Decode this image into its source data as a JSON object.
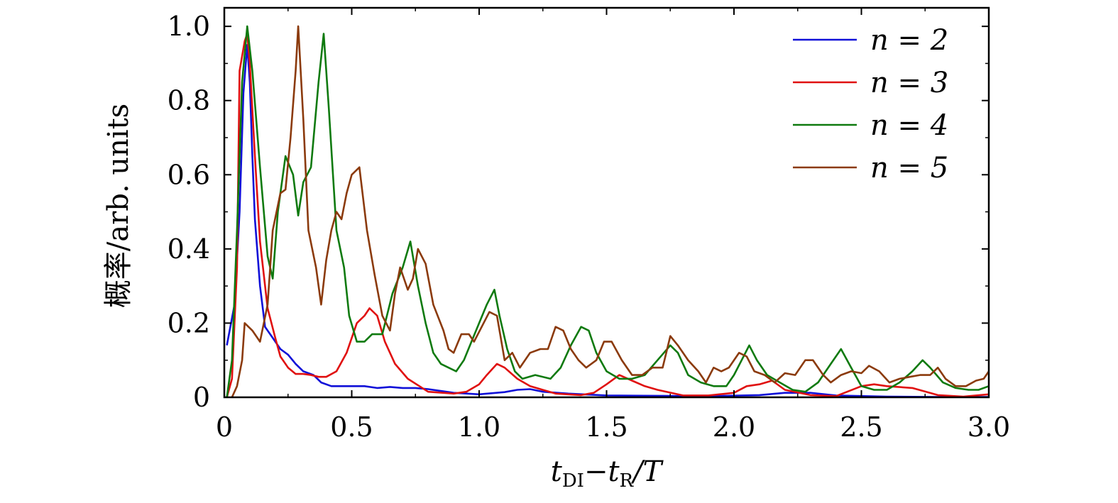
{
  "chart_data": {
    "type": "line",
    "xlabel": "t_DI − t_R / T",
    "xlabel_parts": {
      "t1": "t",
      "sub1": "DI",
      "minus": "−",
      "t2": "t",
      "sub2": "R",
      "rest": "/T"
    },
    "ylabel": "概率/arb. units",
    "xlim": [
      0,
      3.0
    ],
    "ylim": [
      0,
      1.05
    ],
    "x_ticks": [
      0,
      0.5,
      1.0,
      1.5,
      2.0,
      2.5,
      3.0
    ],
    "x_tick_labels": [
      "0",
      "0.5",
      "1.0",
      "1.5",
      "2.0",
      "2.5",
      "3.0"
    ],
    "y_ticks": [
      0,
      0.2,
      0.4,
      0.6,
      0.8,
      1.0
    ],
    "y_tick_labels": [
      "0",
      "0.2",
      "0.4",
      "0.6",
      "0.8",
      "1.0"
    ],
    "grid": false,
    "legend_position": "top-right",
    "series": [
      {
        "name": "n = 2",
        "color": "#1010d8",
        "points": [
          [
            0.01,
            0.14
          ],
          [
            0.04,
            0.25
          ],
          [
            0.06,
            0.5
          ],
          [
            0.075,
            0.82
          ],
          [
            0.09,
            0.95
          ],
          [
            0.1,
            0.85
          ],
          [
            0.11,
            0.65
          ],
          [
            0.12,
            0.48
          ],
          [
            0.14,
            0.3
          ],
          [
            0.16,
            0.19
          ],
          [
            0.19,
            0.16
          ],
          [
            0.22,
            0.13
          ],
          [
            0.25,
            0.115
          ],
          [
            0.28,
            0.09
          ],
          [
            0.31,
            0.07
          ],
          [
            0.35,
            0.06
          ],
          [
            0.38,
            0.04
          ],
          [
            0.42,
            0.03
          ],
          [
            0.46,
            0.03
          ],
          [
            0.5,
            0.03
          ],
          [
            0.55,
            0.03
          ],
          [
            0.6,
            0.025
          ],
          [
            0.65,
            0.028
          ],
          [
            0.7,
            0.025
          ],
          [
            0.75,
            0.025
          ],
          [
            0.8,
            0.022
          ],
          [
            0.9,
            0.012
          ],
          [
            1.0,
            0.008
          ],
          [
            1.1,
            0.014
          ],
          [
            1.15,
            0.02
          ],
          [
            1.2,
            0.022
          ],
          [
            1.25,
            0.015
          ],
          [
            1.35,
            0.01
          ],
          [
            1.5,
            0.005
          ],
          [
            1.7,
            0.004
          ],
          [
            1.9,
            0.003
          ],
          [
            2.1,
            0.006
          ],
          [
            2.2,
            0.012
          ],
          [
            2.3,
            0.012
          ],
          [
            2.4,
            0.005
          ],
          [
            2.6,
            0.002
          ],
          [
            2.8,
            0.001
          ],
          [
            3.0,
            0.001
          ]
        ]
      },
      {
        "name": "n = 3",
        "color": "#e01010",
        "points": [
          [
            0.01,
            0.0
          ],
          [
            0.03,
            0.05
          ],
          [
            0.05,
            0.35
          ],
          [
            0.06,
            0.88
          ],
          [
            0.08,
            0.96
          ],
          [
            0.09,
            0.98
          ],
          [
            0.1,
            0.9
          ],
          [
            0.12,
            0.65
          ],
          [
            0.14,
            0.42
          ],
          [
            0.17,
            0.24
          ],
          [
            0.2,
            0.16
          ],
          [
            0.22,
            0.11
          ],
          [
            0.25,
            0.08
          ],
          [
            0.28,
            0.063
          ],
          [
            0.31,
            0.063
          ],
          [
            0.34,
            0.06
          ],
          [
            0.37,
            0.055
          ],
          [
            0.4,
            0.055
          ],
          [
            0.44,
            0.07
          ],
          [
            0.48,
            0.12
          ],
          [
            0.52,
            0.2
          ],
          [
            0.55,
            0.22
          ],
          [
            0.57,
            0.24
          ],
          [
            0.6,
            0.22
          ],
          [
            0.63,
            0.15
          ],
          [
            0.67,
            0.09
          ],
          [
            0.72,
            0.05
          ],
          [
            0.8,
            0.015
          ],
          [
            0.9,
            0.01
          ],
          [
            0.95,
            0.015
          ],
          [
            1.0,
            0.035
          ],
          [
            1.03,
            0.06
          ],
          [
            1.07,
            0.09
          ],
          [
            1.1,
            0.08
          ],
          [
            1.15,
            0.05
          ],
          [
            1.2,
            0.03
          ],
          [
            1.3,
            0.01
          ],
          [
            1.4,
            0.006
          ],
          [
            1.45,
            0.012
          ],
          [
            1.5,
            0.035
          ],
          [
            1.55,
            0.06
          ],
          [
            1.6,
            0.045
          ],
          [
            1.65,
            0.03
          ],
          [
            1.7,
            0.02
          ],
          [
            1.8,
            0.005
          ],
          [
            1.9,
            0.005
          ],
          [
            2.0,
            0.012
          ],
          [
            2.05,
            0.03
          ],
          [
            2.1,
            0.035
          ],
          [
            2.15,
            0.045
          ],
          [
            2.2,
            0.02
          ],
          [
            2.3,
            0.006
          ],
          [
            2.4,
            0.003
          ],
          [
            2.5,
            0.03
          ],
          [
            2.55,
            0.035
          ],
          [
            2.6,
            0.03
          ],
          [
            2.7,
            0.025
          ],
          [
            2.8,
            0.006
          ],
          [
            2.9,
            0.002
          ],
          [
            3.0,
            0.008
          ]
        ]
      },
      {
        "name": "n = 4",
        "color": "#0f7a0f",
        "points": [
          [
            0.01,
            0.0
          ],
          [
            0.03,
            0.1
          ],
          [
            0.05,
            0.45
          ],
          [
            0.07,
            0.85
          ],
          [
            0.09,
            1.0
          ],
          [
            0.11,
            0.88
          ],
          [
            0.14,
            0.62
          ],
          [
            0.17,
            0.38
          ],
          [
            0.19,
            0.32
          ],
          [
            0.21,
            0.5
          ],
          [
            0.24,
            0.65
          ],
          [
            0.27,
            0.6
          ],
          [
            0.29,
            0.49
          ],
          [
            0.31,
            0.58
          ],
          [
            0.34,
            0.62
          ],
          [
            0.37,
            0.85
          ],
          [
            0.39,
            0.98
          ],
          [
            0.41,
            0.78
          ],
          [
            0.44,
            0.45
          ],
          [
            0.47,
            0.35
          ],
          [
            0.49,
            0.22
          ],
          [
            0.52,
            0.15
          ],
          [
            0.55,
            0.15
          ],
          [
            0.58,
            0.17
          ],
          [
            0.62,
            0.17
          ],
          [
            0.66,
            0.28
          ],
          [
            0.7,
            0.35
          ],
          [
            0.73,
            0.42
          ],
          [
            0.76,
            0.3
          ],
          [
            0.79,
            0.2
          ],
          [
            0.82,
            0.12
          ],
          [
            0.85,
            0.09
          ],
          [
            0.88,
            0.08
          ],
          [
            0.91,
            0.07
          ],
          [
            0.94,
            0.1
          ],
          [
            0.97,
            0.15
          ],
          [
            1.0,
            0.2
          ],
          [
            1.03,
            0.25
          ],
          [
            1.06,
            0.29
          ],
          [
            1.08,
            0.22
          ],
          [
            1.11,
            0.13
          ],
          [
            1.14,
            0.07
          ],
          [
            1.17,
            0.05
          ],
          [
            1.22,
            0.06
          ],
          [
            1.28,
            0.05
          ],
          [
            1.32,
            0.08
          ],
          [
            1.36,
            0.14
          ],
          [
            1.4,
            0.19
          ],
          [
            1.43,
            0.18
          ],
          [
            1.46,
            0.12
          ],
          [
            1.5,
            0.07
          ],
          [
            1.55,
            0.05
          ],
          [
            1.6,
            0.05
          ],
          [
            1.65,
            0.06
          ],
          [
            1.7,
            0.1
          ],
          [
            1.75,
            0.14
          ],
          [
            1.78,
            0.12
          ],
          [
            1.82,
            0.06
          ],
          [
            1.87,
            0.04
          ],
          [
            1.92,
            0.03
          ],
          [
            1.97,
            0.03
          ],
          [
            2.0,
            0.06
          ],
          [
            2.03,
            0.1
          ],
          [
            2.06,
            0.14
          ],
          [
            2.09,
            0.1
          ],
          [
            2.13,
            0.06
          ],
          [
            2.18,
            0.04
          ],
          [
            2.23,
            0.02
          ],
          [
            2.28,
            0.015
          ],
          [
            2.33,
            0.04
          ],
          [
            2.38,
            0.09
          ],
          [
            2.42,
            0.13
          ],
          [
            2.46,
            0.08
          ],
          [
            2.5,
            0.03
          ],
          [
            2.55,
            0.02
          ],
          [
            2.6,
            0.02
          ],
          [
            2.65,
            0.04
          ],
          [
            2.7,
            0.07
          ],
          [
            2.74,
            0.1
          ],
          [
            2.77,
            0.08
          ],
          [
            2.82,
            0.04
          ],
          [
            2.87,
            0.025
          ],
          [
            2.92,
            0.02
          ],
          [
            2.96,
            0.02
          ],
          [
            3.0,
            0.03
          ]
        ]
      },
      {
        "name": "n = 5",
        "color": "#8b3a0c",
        "points": [
          [
            0.03,
            0.0
          ],
          [
            0.05,
            0.03
          ],
          [
            0.07,
            0.1
          ],
          [
            0.08,
            0.2
          ],
          [
            0.11,
            0.18
          ],
          [
            0.14,
            0.15
          ],
          [
            0.17,
            0.25
          ],
          [
            0.19,
            0.45
          ],
          [
            0.22,
            0.55
          ],
          [
            0.24,
            0.56
          ],
          [
            0.26,
            0.7
          ],
          [
            0.28,
            0.88
          ],
          [
            0.29,
            1.0
          ],
          [
            0.31,
            0.75
          ],
          [
            0.33,
            0.45
          ],
          [
            0.36,
            0.35
          ],
          [
            0.38,
            0.25
          ],
          [
            0.4,
            0.37
          ],
          [
            0.42,
            0.45
          ],
          [
            0.44,
            0.5
          ],
          [
            0.46,
            0.48
          ],
          [
            0.48,
            0.55
          ],
          [
            0.5,
            0.6
          ],
          [
            0.53,
            0.62
          ],
          [
            0.56,
            0.45
          ],
          [
            0.59,
            0.33
          ],
          [
            0.62,
            0.22
          ],
          [
            0.65,
            0.18
          ],
          [
            0.67,
            0.28
          ],
          [
            0.69,
            0.35
          ],
          [
            0.72,
            0.29
          ],
          [
            0.74,
            0.32
          ],
          [
            0.76,
            0.4
          ],
          [
            0.79,
            0.36
          ],
          [
            0.82,
            0.25
          ],
          [
            0.86,
            0.18
          ],
          [
            0.88,
            0.13
          ],
          [
            0.9,
            0.12
          ],
          [
            0.93,
            0.17
          ],
          [
            0.96,
            0.17
          ],
          [
            0.98,
            0.15
          ],
          [
            1.01,
            0.19
          ],
          [
            1.04,
            0.23
          ],
          [
            1.07,
            0.22
          ],
          [
            1.1,
            0.1
          ],
          [
            1.13,
            0.12
          ],
          [
            1.16,
            0.08
          ],
          [
            1.2,
            0.12
          ],
          [
            1.24,
            0.13
          ],
          [
            1.27,
            0.13
          ],
          [
            1.3,
            0.19
          ],
          [
            1.33,
            0.18
          ],
          [
            1.36,
            0.13
          ],
          [
            1.39,
            0.1
          ],
          [
            1.42,
            0.08
          ],
          [
            1.46,
            0.1
          ],
          [
            1.49,
            0.15
          ],
          [
            1.52,
            0.15
          ],
          [
            1.56,
            0.1
          ],
          [
            1.6,
            0.06
          ],
          [
            1.64,
            0.06
          ],
          [
            1.68,
            0.08
          ],
          [
            1.72,
            0.08
          ],
          [
            1.75,
            0.165
          ],
          [
            1.78,
            0.14
          ],
          [
            1.82,
            0.1
          ],
          [
            1.86,
            0.07
          ],
          [
            1.89,
            0.04
          ],
          [
            1.92,
            0.08
          ],
          [
            1.95,
            0.07
          ],
          [
            1.98,
            0.08
          ],
          [
            2.02,
            0.12
          ],
          [
            2.05,
            0.11
          ],
          [
            2.08,
            0.07
          ],
          [
            2.12,
            0.06
          ],
          [
            2.16,
            0.04
          ],
          [
            2.2,
            0.065
          ],
          [
            2.24,
            0.06
          ],
          [
            2.28,
            0.1
          ],
          [
            2.31,
            0.1
          ],
          [
            2.35,
            0.06
          ],
          [
            2.38,
            0.04
          ],
          [
            2.42,
            0.06
          ],
          [
            2.46,
            0.07
          ],
          [
            2.5,
            0.065
          ],
          [
            2.53,
            0.085
          ],
          [
            2.57,
            0.07
          ],
          [
            2.61,
            0.04
          ],
          [
            2.65,
            0.05
          ],
          [
            2.69,
            0.055
          ],
          [
            2.73,
            0.06
          ],
          [
            2.77,
            0.06
          ],
          [
            2.8,
            0.08
          ],
          [
            2.83,
            0.05
          ],
          [
            2.87,
            0.03
          ],
          [
            2.91,
            0.03
          ],
          [
            2.95,
            0.045
          ],
          [
            2.98,
            0.05
          ],
          [
            3.0,
            0.07
          ]
        ]
      }
    ]
  }
}
